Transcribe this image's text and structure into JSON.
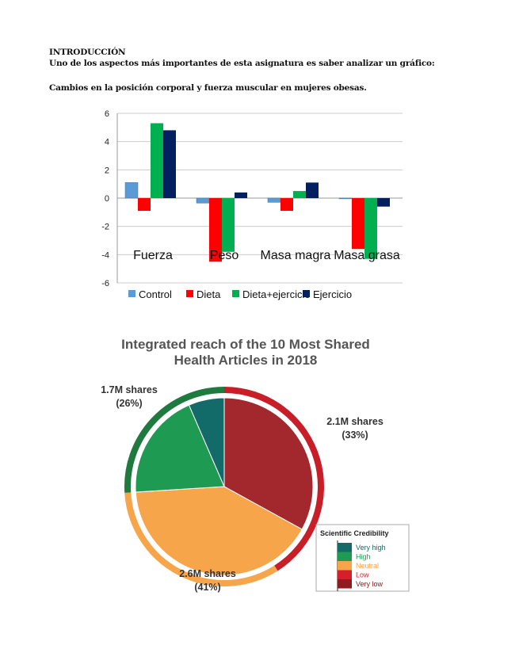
{
  "heading": "INTRODUCCIÓN",
  "intro": "Uno de los aspectos más importantes de esta asignatura es saber analizar un gráfico:",
  "subtitle": "Cambios en la posición corporal y fuerza muscular en mujeres obesas.",
  "chart_data": [
    {
      "type": "bar",
      "title": "",
      "categories": [
        "Fuerza",
        "Peso",
        "Masa magra",
        "Masa grasa"
      ],
      "series": [
        {
          "name": "Control",
          "color": "#5b9bd5",
          "values": [
            1.1,
            -0.35,
            -0.3,
            -0.05
          ]
        },
        {
          "name": "Dieta",
          "color": "#ff0000",
          "values": [
            -0.9,
            -4.5,
            -0.9,
            -3.6
          ]
        },
        {
          "name": "Dieta+ejercicio",
          "color": "#00b050",
          "values": [
            5.3,
            -3.8,
            0.5,
            -4.3
          ]
        },
        {
          "name": "Ejercicio",
          "color": "#002060",
          "values": [
            4.8,
            0.4,
            1.1,
            -0.6
          ]
        }
      ],
      "ylim": [
        -6,
        6
      ],
      "yticks": [
        "6",
        "4",
        "2",
        "0",
        "-2",
        "-4",
        "-6"
      ],
      "grid": true,
      "legend": "bottom"
    },
    {
      "type": "pie",
      "title": [
        "Integrated reach of the 10 Most Shared",
        "Health Articles in 2018"
      ],
      "slices": [
        {
          "name": "Very low",
          "value": 33,
          "color": "#a3282d"
        },
        {
          "name": "Neutral",
          "value": 41,
          "color": "#f6a54a"
        },
        {
          "name": "High",
          "value": 19.5,
          "color": "#1e9a52"
        },
        {
          "name": "Very high",
          "value": 6.5,
          "color": "#136b69"
        }
      ],
      "labels": [
        {
          "shares": "2.1M shares",
          "pct": "(33%)"
        },
        {
          "shares": "2.6M shares",
          "pct": "(41%)"
        },
        {
          "shares": "1.7M shares",
          "pct": "(26%)"
        }
      ],
      "legend_title": "Scientific Credibility",
      "legend": [
        {
          "label": "Very high",
          "color": "#136b69"
        },
        {
          "label": "High",
          "color": "#1e9a52"
        },
        {
          "label": "Neutral",
          "color": "#f6a54a"
        },
        {
          "label": "Low",
          "color": "#d4202a"
        },
        {
          "label": "Very low",
          "color": "#8e1b20"
        }
      ],
      "rings": [
        {
          "name": "Low",
          "value": 41,
          "color": "#c81e28"
        },
        {
          "name": "Neutral",
          "value": 33,
          "color": "#f6a54a"
        },
        {
          "name": "High",
          "value": 26,
          "color": "#1e7a3e"
        }
      ]
    }
  ]
}
